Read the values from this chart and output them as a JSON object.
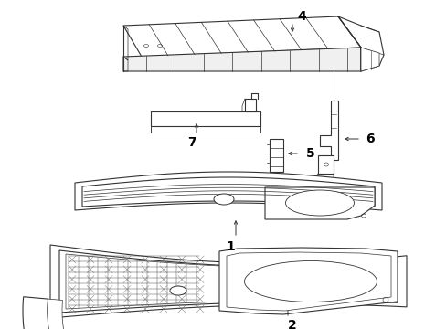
{
  "background_color": "#ffffff",
  "line_color": "#333333",
  "line_width": 0.8,
  "figsize": [
    4.89,
    3.6
  ],
  "dpi": 100
}
